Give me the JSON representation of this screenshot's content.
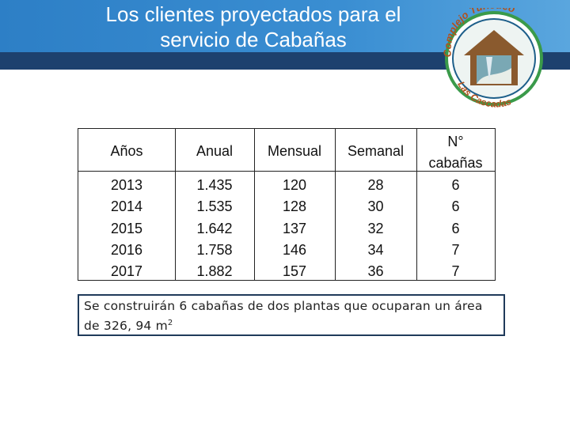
{
  "header": {
    "title_lines": [
      "Los clientes proyectados para el",
      "servicio de Cabañas"
    ]
  },
  "logo": {
    "top_text": "Complejo Turístico",
    "bottom_text": "Las Cascadas"
  },
  "table": {
    "headers": [
      "Años",
      "Anual",
      "Mensual",
      "Semanal",
      [
        "N°",
        "cabañas"
      ]
    ],
    "rows": [
      [
        "2013",
        "1.435",
        "120",
        "28",
        "6"
      ],
      [
        "2014",
        "1.535",
        "128",
        "30",
        "6"
      ],
      [
        "2015",
        "1.642",
        "137",
        "32",
        "6"
      ],
      [
        "2016",
        "1.758",
        "146",
        "34",
        "7"
      ],
      [
        "2017",
        "1.882",
        "157",
        "36",
        "7"
      ]
    ]
  },
  "note": {
    "text": "Se construirán 6 cabañas de dos plantas que ocuparan un área de 326, 94 m",
    "sup": "2"
  }
}
